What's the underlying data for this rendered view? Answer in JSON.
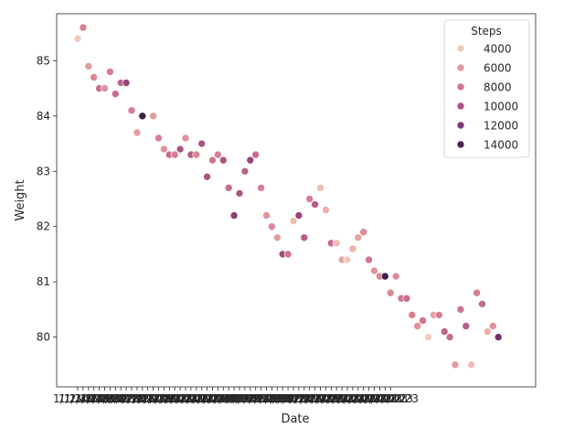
{
  "chart_data": {
    "type": "scatter",
    "xlabel": "Date",
    "ylabel": "Weight",
    "ylim": [
      79.1,
      85.85
    ],
    "y_ticks": [
      "80",
      "81",
      "82",
      "83",
      "84",
      "85"
    ],
    "x_tick_overlay_text": "1/8/2023",
    "x_tick_overlay_end": "2/28/2023",
    "legend": {
      "title": "Steps",
      "placement": "top-right",
      "entries": [
        {
          "label": "4000",
          "value": 4000
        },
        {
          "label": "6000",
          "value": 6000
        },
        {
          "label": "8000",
          "value": 8000
        },
        {
          "label": "10000",
          "value": 10000
        },
        {
          "label": "12000",
          "value": 12000
        },
        {
          "label": "14000",
          "value": 14000
        }
      ]
    },
    "hue_range": [
      3000,
      15000
    ],
    "points": [
      {
        "date": "1/1/2023",
        "weight": 85.4,
        "steps": 4000
      },
      {
        "date": "1/2/2023",
        "weight": 85.6,
        "steps": 7500
      },
      {
        "date": "1/3/2023",
        "weight": 84.9,
        "steps": 6000
      },
      {
        "date": "1/4/2023",
        "weight": 84.7,
        "steps": 7000
      },
      {
        "date": "1/5/2023",
        "weight": 84.5,
        "steps": 8500
      },
      {
        "date": "1/6/2023",
        "weight": 84.5,
        "steps": 6500
      },
      {
        "date": "1/7/2023",
        "weight": 84.8,
        "steps": 7500
      },
      {
        "date": "1/8/2023",
        "weight": 84.4,
        "steps": 8500
      },
      {
        "date": "1/9/2023",
        "weight": 84.6,
        "steps": 9000
      },
      {
        "date": "1/10/2023",
        "weight": 84.6,
        "steps": 11000
      },
      {
        "date": "1/11/2023",
        "weight": 84.1,
        "steps": 7500
      },
      {
        "date": "1/12/2023",
        "weight": 83.7,
        "steps": 6000
      },
      {
        "date": "1/13/2023",
        "weight": 84.0,
        "steps": 14500
      },
      {
        "date": "1/15/2023",
        "weight": 84.0,
        "steps": 6000
      },
      {
        "date": "1/16/2023",
        "weight": 83.6,
        "steps": 7500
      },
      {
        "date": "1/17/2023",
        "weight": 83.4,
        "steps": 6500
      },
      {
        "date": "1/18/2023",
        "weight": 83.3,
        "steps": 8500
      },
      {
        "date": "1/19/2023",
        "weight": 83.3,
        "steps": 7500
      },
      {
        "date": "1/20/2023",
        "weight": 83.4,
        "steps": 10000
      },
      {
        "date": "1/21/2023",
        "weight": 83.6,
        "steps": 6500
      },
      {
        "date": "1/22/2023",
        "weight": 83.3,
        "steps": 9500
      },
      {
        "date": "1/23/2023",
        "weight": 83.3,
        "steps": 7000
      },
      {
        "date": "1/24/2023",
        "weight": 83.5,
        "steps": 10000
      },
      {
        "date": "1/25/2023",
        "weight": 82.9,
        "steps": 10000
      },
      {
        "date": "1/26/2023",
        "weight": 83.2,
        "steps": 8000
      },
      {
        "date": "1/27/2023",
        "weight": 83.3,
        "steps": 7500
      },
      {
        "date": "1/28/2023",
        "weight": 83.2,
        "steps": 10000
      },
      {
        "date": "1/29/2023",
        "weight": 82.7,
        "steps": 8500
      },
      {
        "date": "1/30/2023",
        "weight": 82.2,
        "steps": 11500
      },
      {
        "date": "1/31/2023",
        "weight": 82.6,
        "steps": 10000
      },
      {
        "date": "2/1/2023",
        "weight": 83.0,
        "steps": 9000
      },
      {
        "date": "2/2/2023",
        "weight": 83.2,
        "steps": 11000
      },
      {
        "date": "2/3/2023",
        "weight": 83.3,
        "steps": 8500
      },
      {
        "date": "2/4/2023",
        "weight": 82.7,
        "steps": 7500
      },
      {
        "date": "2/5/2023",
        "weight": 82.2,
        "steps": 6500
      },
      {
        "date": "2/6/2023",
        "weight": 82.0,
        "steps": 7000
      },
      {
        "date": "2/7/2023",
        "weight": 81.8,
        "steps": 6000
      },
      {
        "date": "2/8/2023",
        "weight": 81.5,
        "steps": 10500
      },
      {
        "date": "2/9/2023",
        "weight": 81.5,
        "steps": 8000
      },
      {
        "date": "2/10/2023",
        "weight": 82.1,
        "steps": 4500
      },
      {
        "date": "2/11/2023",
        "weight": 82.2,
        "steps": 11000
      },
      {
        "date": "2/12/2023",
        "weight": 81.8,
        "steps": 9500
      },
      {
        "date": "2/13/2023",
        "weight": 82.5,
        "steps": 7500
      },
      {
        "date": "2/14/2023",
        "weight": 82.4,
        "steps": 9500
      },
      {
        "date": "2/15/2023",
        "weight": 82.7,
        "steps": 4500
      },
      {
        "date": "2/16/2023",
        "weight": 82.3,
        "steps": 5000
      },
      {
        "date": "2/17/2023",
        "weight": 81.7,
        "steps": 8500
      },
      {
        "date": "2/18/2023",
        "weight": 81.7,
        "steps": 4500
      },
      {
        "date": "2/19/2023",
        "weight": 81.4,
        "steps": 5500
      },
      {
        "date": "2/20/2023",
        "weight": 81.4,
        "steps": 4000
      },
      {
        "date": "2/21/2023",
        "weight": 81.6,
        "steps": 5000
      },
      {
        "date": "2/22/2023",
        "weight": 81.8,
        "steps": 5500
      },
      {
        "date": "2/23/2023",
        "weight": 81.9,
        "steps": 7000
      },
      {
        "date": "2/24/2023",
        "weight": 81.4,
        "steps": 8000
      },
      {
        "date": "2/25/2023",
        "weight": 81.2,
        "steps": 6500
      },
      {
        "date": "2/26/2023",
        "weight": 81.1,
        "steps": 7000
      },
      {
        "date": "2/27/2023",
        "weight": 81.1,
        "steps": 14500
      },
      {
        "date": "2/28/2023",
        "weight": 80.8,
        "steps": 7000
      },
      {
        "date": "3/1/2023",
        "weight": 81.1,
        "steps": 7000
      },
      {
        "date": "3/2/2023",
        "weight": 80.7,
        "steps": 8000
      },
      {
        "date": "3/3/2023",
        "weight": 80.7,
        "steps": 8500
      },
      {
        "date": "3/4/2023",
        "weight": 80.4,
        "steps": 7500
      },
      {
        "date": "3/5/2023",
        "weight": 80.2,
        "steps": 6500
      },
      {
        "date": "3/6/2023",
        "weight": 80.3,
        "steps": 8000
      },
      {
        "date": "3/7/2023",
        "weight": 80.0,
        "steps": 4000
      },
      {
        "date": "3/8/2023",
        "weight": 80.4,
        "steps": 5500
      },
      {
        "date": "3/9/2023",
        "weight": 80.4,
        "steps": 7500
      },
      {
        "date": "3/10/2023",
        "weight": 80.1,
        "steps": 9000
      },
      {
        "date": "3/11/2023",
        "weight": 80.0,
        "steps": 8500
      },
      {
        "date": "3/12/2023",
        "weight": 79.5,
        "steps": 6000
      },
      {
        "date": "3/13/2023",
        "weight": 80.5,
        "steps": 8000
      },
      {
        "date": "3/14/2023",
        "weight": 80.2,
        "steps": 9500
      },
      {
        "date": "3/15/2023",
        "weight": 79.5,
        "steps": 4500
      },
      {
        "date": "3/16/2023",
        "weight": 80.8,
        "steps": 7500
      },
      {
        "date": "3/17/2023",
        "weight": 80.6,
        "steps": 8500
      },
      {
        "date": "3/18/2023",
        "weight": 80.1,
        "steps": 5000
      },
      {
        "date": "3/19/2023",
        "weight": 80.2,
        "steps": 6500
      },
      {
        "date": "3/20/2023",
        "weight": 80.0,
        "steps": 12500
      }
    ]
  }
}
